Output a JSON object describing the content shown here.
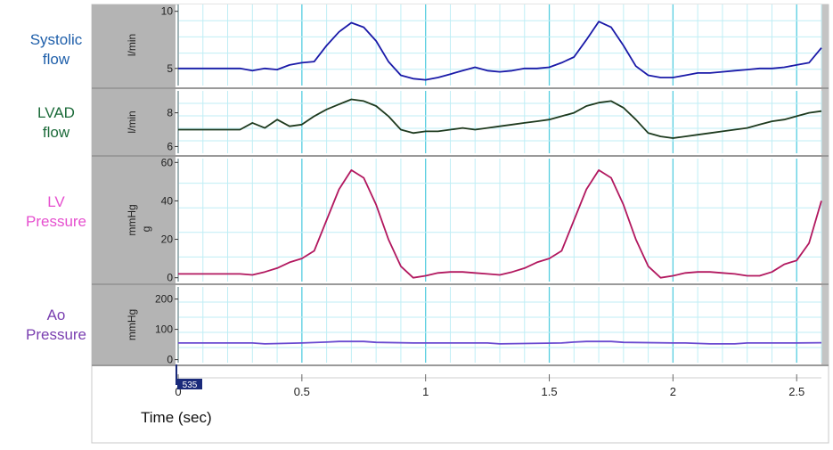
{
  "chart_data": {
    "type": "line",
    "xlabel": "Time (sec)",
    "xlim": [
      0,
      2.6
    ],
    "x_ticks": [
      0,
      0.5,
      1,
      1.5,
      2,
      2.5
    ],
    "x_tick_labels": [
      "0",
      "0.5",
      "1",
      "1.5",
      "2",
      "2.5"
    ],
    "marker_label": "535",
    "panels": [
      {
        "key": "systolic",
        "name_lines": [
          "Systolic",
          "flow"
        ],
        "unit": "l/min",
        "color": "#1f5faa",
        "line_color": "#1a1aa8",
        "ylim": [
          3.5,
          10.6
        ],
        "y_ticks": [
          5,
          10
        ],
        "x": [
          0,
          0.25,
          0.3,
          0.35,
          0.4,
          0.45,
          0.5,
          0.55,
          0.6,
          0.65,
          0.7,
          0.75,
          0.8,
          0.85,
          0.9,
          0.95,
          1.0,
          1.05,
          1.1,
          1.15,
          1.2,
          1.25,
          1.3,
          1.35,
          1.4,
          1.45,
          1.5,
          1.55,
          1.6,
          1.65,
          1.7,
          1.75,
          1.8,
          1.85,
          1.9,
          1.95,
          2.0,
          2.05,
          2.1,
          2.15,
          2.2,
          2.25,
          2.3,
          2.35,
          2.4,
          2.45,
          2.5,
          2.55,
          2.6
        ],
        "y": [
          5,
          5,
          4.8,
          5.0,
          4.9,
          5.3,
          5.5,
          5.6,
          7.0,
          8.2,
          9.0,
          8.6,
          7.4,
          5.6,
          4.4,
          4.1,
          4.0,
          4.2,
          4.5,
          4.8,
          5.1,
          4.8,
          4.7,
          4.8,
          5.0,
          5.0,
          5.1,
          5.5,
          6.0,
          7.5,
          9.1,
          8.6,
          7.0,
          5.2,
          4.4,
          4.2,
          4.2,
          4.4,
          4.6,
          4.6,
          4.7,
          4.8,
          4.9,
          5.0,
          5.0,
          5.1,
          5.3,
          5.5,
          6.8
        ]
      },
      {
        "key": "lvad",
        "name_lines": [
          "LVAD",
          "flow"
        ],
        "unit": "l/min",
        "color": "#1c6b3a",
        "line_color": "#1e3a1e",
        "ylim": [
          5.6,
          9.3
        ],
        "y_ticks": [
          6,
          8
        ],
        "x": [
          0,
          0.25,
          0.3,
          0.35,
          0.4,
          0.45,
          0.5,
          0.55,
          0.6,
          0.65,
          0.7,
          0.75,
          0.8,
          0.85,
          0.9,
          0.95,
          1.0,
          1.05,
          1.1,
          1.15,
          1.2,
          1.25,
          1.3,
          1.35,
          1.4,
          1.45,
          1.5,
          1.55,
          1.6,
          1.65,
          1.7,
          1.75,
          1.8,
          1.85,
          1.9,
          1.95,
          2.0,
          2.05,
          2.1,
          2.15,
          2.2,
          2.25,
          2.3,
          2.35,
          2.4,
          2.45,
          2.5,
          2.55,
          2.6
        ],
        "y": [
          7,
          7,
          7.4,
          7.1,
          7.6,
          7.2,
          7.3,
          7.8,
          8.2,
          8.5,
          8.8,
          8.7,
          8.4,
          7.8,
          7.0,
          6.8,
          6.9,
          6.9,
          7.0,
          7.1,
          7.0,
          7.1,
          7.2,
          7.3,
          7.4,
          7.5,
          7.6,
          7.8,
          8.0,
          8.4,
          8.6,
          8.7,
          8.3,
          7.6,
          6.8,
          6.6,
          6.5,
          6.6,
          6.7,
          6.8,
          6.9,
          7.0,
          7.1,
          7.3,
          7.5,
          7.6,
          7.8,
          8.0,
          8.1
        ]
      },
      {
        "key": "lv",
        "name_lines": [
          "LV",
          "Pressure"
        ],
        "unit": "mmHg",
        "unit_extra": "g",
        "color": "#e64fcf",
        "line_color": "#b2185f",
        "ylim": [
          -2,
          62
        ],
        "y_ticks": [
          0,
          20,
          40,
          60
        ],
        "x": [
          0,
          0.25,
          0.3,
          0.35,
          0.4,
          0.45,
          0.5,
          0.55,
          0.6,
          0.65,
          0.7,
          0.75,
          0.8,
          0.85,
          0.9,
          0.95,
          1.0,
          1.05,
          1.1,
          1.15,
          1.2,
          1.25,
          1.3,
          1.35,
          1.4,
          1.45,
          1.5,
          1.55,
          1.6,
          1.65,
          1.7,
          1.75,
          1.8,
          1.85,
          1.9,
          1.95,
          2.0,
          2.05,
          2.1,
          2.15,
          2.2,
          2.25,
          2.3,
          2.35,
          2.4,
          2.45,
          2.5,
          2.55,
          2.6
        ],
        "y": [
          2,
          2,
          1.5,
          3,
          5,
          8,
          10,
          14,
          30,
          46,
          56,
          52,
          38,
          20,
          6,
          0,
          1,
          2.5,
          3,
          3,
          2.5,
          2,
          1.5,
          3,
          5,
          8,
          10,
          14,
          30,
          46,
          56,
          52,
          38,
          20,
          6,
          0,
          1,
          2.5,
          3,
          3,
          2.5,
          2,
          1,
          1,
          3,
          7,
          9,
          18,
          40
        ]
      },
      {
        "key": "ao",
        "name_lines": [
          "Ao",
          "Pressure"
        ],
        "unit": "mmHg",
        "color": "#7a3fb0",
        "line_color": "#6a4ad0",
        "ylim": [
          -10,
          240
        ],
        "y_ticks": [
          0,
          100,
          200
        ],
        "x": [
          0,
          0.3,
          0.35,
          0.5,
          0.6,
          0.65,
          0.75,
          0.8,
          0.95,
          1.0,
          1.25,
          1.3,
          1.55,
          1.6,
          1.65,
          1.75,
          1.8,
          2.0,
          2.05,
          2.15,
          2.25,
          2.3,
          2.5,
          2.6
        ],
        "y": [
          55,
          55,
          52,
          55,
          58,
          60,
          60,
          57,
          55,
          55,
          55,
          52,
          55,
          58,
          60,
          60,
          57,
          55,
          55,
          52,
          52,
          55,
          55,
          56
        ]
      }
    ]
  }
}
